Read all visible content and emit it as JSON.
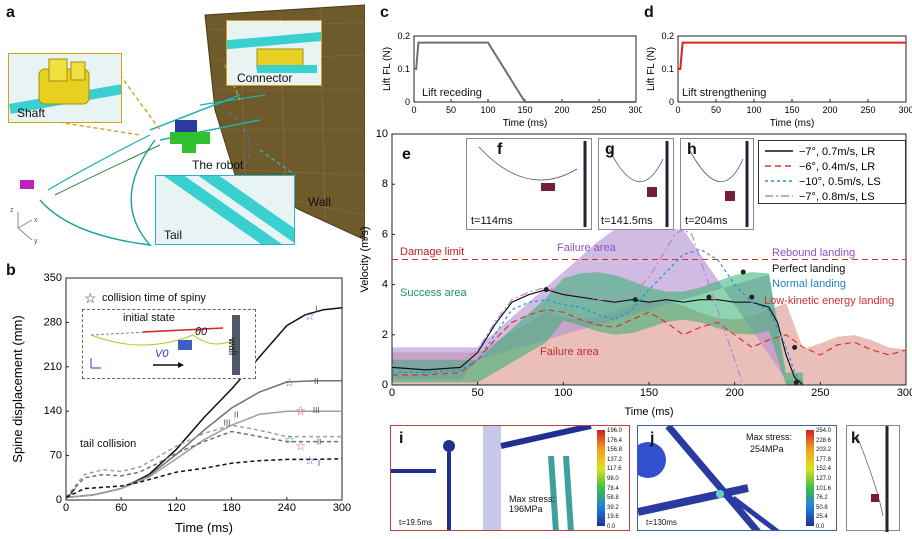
{
  "panels": {
    "a": {
      "label": "a",
      "callouts": {
        "shaft": "Shaft",
        "connector": "Connector",
        "robot": "The robot",
        "wall": "Wall",
        "tail": "Tail"
      }
    },
    "b": {
      "label": "b",
      "legend_star": "collision time of spiny",
      "inset_title": "initial state",
      "inset_theta": "θ0",
      "inset_v": "V0",
      "inset_wall": "wall",
      "tail_collision": "tail collision"
    },
    "c": {
      "label": "c",
      "annotation": "Lift receding"
    },
    "d": {
      "label": "d",
      "annotation": "Lift strengthening"
    },
    "e": {
      "label": "e",
      "damage_limit": "Damage limit",
      "failure_area_top": "Failure area",
      "failure_area_bottom": "Failure area",
      "success_area": "Success area",
      "landing_labels": [
        "Rebound landing",
        "Perfect landing",
        "Normal landing",
        "Low-kinetic energy landing"
      ]
    },
    "f": {
      "label": "f",
      "time": "t=114ms"
    },
    "g": {
      "label": "g",
      "time": "t=141.5ms"
    },
    "h": {
      "label": "h",
      "time": "t=204ms"
    },
    "i": {
      "label": "i",
      "time": "t=19.5ms",
      "stress": "Max stress: 196MPa"
    },
    "j": {
      "label": "j",
      "time": "t=130ms",
      "stress_title": "Max stress:",
      "stress_value": "254MPa"
    },
    "k": {
      "label": "k"
    }
  },
  "colorbars": {
    "i": [
      "196.0",
      "176.4",
      "156.8",
      "137.2",
      "117.6",
      "98.0",
      "78.4",
      "58.8",
      "39.2",
      "19.6",
      "0.0"
    ],
    "j": [
      "254.0",
      "228.6",
      "203.2",
      "177.8",
      "152.4",
      "127.0",
      "101.6",
      "76.2",
      "50.8",
      "25.4",
      "0.0"
    ]
  },
  "chart_data": [
    {
      "id": "c",
      "type": "line",
      "xlabel": "Time (ms)",
      "ylabel": "Lift FL (N)",
      "xlim": [
        0,
        300
      ],
      "ylim": [
        0,
        0.2
      ],
      "xticks": [
        "0",
        "50",
        "100",
        "150",
        "200",
        "250",
        "300"
      ],
      "yticks": [
        "0",
        "0.1",
        "0.2"
      ],
      "series": [
        {
          "name": "lift",
          "color": "#707070",
          "x": [
            0,
            3,
            6,
            100,
            150,
            300
          ],
          "y": [
            0.1,
            0.1,
            0.18,
            0.18,
            0,
            0
          ]
        }
      ]
    },
    {
      "id": "d",
      "type": "line",
      "xlabel": "Time (ms)",
      "ylabel": "Lift FL (N)",
      "xlim": [
        0,
        300
      ],
      "ylim": [
        0,
        0.2
      ],
      "xticks": [
        "0",
        "50",
        "100",
        "150",
        "200",
        "250",
        "300"
      ],
      "yticks": [
        "0",
        "0.1",
        "0.2"
      ],
      "series": [
        {
          "name": "lift",
          "color": "#e02020",
          "x": [
            0,
            3,
            6,
            300
          ],
          "y": [
            0.1,
            0.1,
            0.18,
            0.18
          ]
        }
      ]
    },
    {
      "id": "b",
      "type": "line",
      "xlabel": "Time (ms)",
      "ylabel": "Spine displacement (mm)",
      "xlim": [
        0,
        300
      ],
      "ylim": [
        0,
        350
      ],
      "xticks": [
        "0",
        "60",
        "120",
        "180",
        "240",
        "300"
      ],
      "yticks": [
        "0",
        "70",
        "140",
        "210",
        "280",
        "350"
      ],
      "series": [
        {
          "name": "I",
          "color": "#111111",
          "dash": "",
          "x": [
            0,
            30,
            60,
            90,
            120,
            150,
            180,
            210,
            240,
            260,
            280,
            300
          ],
          "y": [
            4,
            8,
            18,
            40,
            80,
            130,
            175,
            225,
            275,
            292,
            300,
            303
          ]
        },
        {
          "name": "II",
          "color": "#707070",
          "dash": "",
          "x": [
            0,
            30,
            60,
            90,
            120,
            150,
            180,
            210,
            240,
            270,
            300
          ],
          "y": [
            4,
            8,
            18,
            38,
            72,
            110,
            145,
            170,
            186,
            188,
            188
          ]
        },
        {
          "name": "III",
          "color": "#a0a0a0",
          "dash": "",
          "x": [
            0,
            30,
            60,
            90,
            120,
            150,
            180,
            210,
            240,
            270,
            300
          ],
          "y": [
            4,
            8,
            18,
            36,
            65,
            95,
            118,
            135,
            140,
            140,
            140
          ]
        },
        {
          "name": "III-d",
          "color": "#a0a0a0",
          "dash": "4,3",
          "x": [
            0,
            20,
            40,
            60,
            80,
            100,
            120,
            150,
            180,
            210,
            240,
            270,
            300
          ],
          "y": [
            4,
            40,
            48,
            45,
            52,
            68,
            85,
            105,
            118,
            110,
            100,
            100,
            100
          ]
        },
        {
          "name": "II-d",
          "color": "#707070",
          "dash": "4,3",
          "x": [
            0,
            20,
            40,
            60,
            80,
            100,
            120,
            150,
            180,
            210,
            240,
            270,
            300
          ],
          "y": [
            4,
            35,
            40,
            38,
            44,
            58,
            74,
            92,
            108,
            100,
            92,
            92,
            92
          ]
        },
        {
          "name": "I-d",
          "color": "#111111",
          "dash": "4,3",
          "x": [
            0,
            20,
            40,
            60,
            80,
            100,
            120,
            150,
            180,
            210,
            240,
            270,
            300
          ],
          "y": [
            4,
            18,
            20,
            22,
            28,
            36,
            44,
            50,
            58,
            62,
            64,
            64,
            65
          ]
        }
      ],
      "stars": [
        {
          "x": 265,
          "y": 290,
          "color": "#4060d0"
        },
        {
          "x": 243,
          "y": 185,
          "color": "#20a060"
        },
        {
          "x": 255,
          "y": 140,
          "color": "#e03030"
        },
        {
          "x": 243,
          "y": 95,
          "color": "#20a060"
        },
        {
          "x": 255,
          "y": 85,
          "color": "#e06060"
        },
        {
          "x": 265,
          "y": 62,
          "color": "#4060d0"
        }
      ],
      "roman": [
        {
          "text": "I",
          "x": 272,
          "y": 302
        },
        {
          "text": "II",
          "x": 272,
          "y": 188
        },
        {
          "text": "III",
          "x": 272,
          "y": 142
        },
        {
          "text": "II",
          "x": 185,
          "y": 135
        },
        {
          "text": "III",
          "x": 175,
          "y": 122
        },
        {
          "text": "II",
          "x": 275,
          "y": 92
        },
        {
          "text": "I",
          "x": 275,
          "y": 58
        }
      ]
    },
    {
      "id": "e",
      "type": "line",
      "xlabel": "Time (ms)",
      "ylabel": "Velocity (m/s)",
      "xlim": [
        0,
        300
      ],
      "ylim": [
        0,
        10
      ],
      "xticks": [
        "0",
        "50",
        "100",
        "150",
        "200",
        "250",
        "300"
      ],
      "yticks": [
        "0",
        "2",
        "4",
        "6",
        "8",
        "10"
      ],
      "damage_limit": 5,
      "series": [
        {
          "name": "−7°, 0.7m/s, LR",
          "color": "#111111",
          "dash": "",
          "x": [
            0,
            20,
            40,
            50,
            60,
            70,
            80,
            90,
            100,
            110,
            120,
            130,
            140,
            150,
            160,
            170,
            180,
            190,
            200,
            210,
            220,
            225,
            230,
            235,
            240
          ],
          "y": [
            0.7,
            0.6,
            0.7,
            1.3,
            2.4,
            3.3,
            3.6,
            3.8,
            3.6,
            3.5,
            3.4,
            3.3,
            3.4,
            3.3,
            3.4,
            3.3,
            3.4,
            3.4,
            3.3,
            3.3,
            3.1,
            2.5,
            1.2,
            0.3,
            0
          ]
        },
        {
          "name": "−6°, 0.4m/s, LR",
          "color": "#e03030",
          "dash": "6,4",
          "x": [
            0,
            20,
            40,
            50,
            60,
            70,
            80,
            90,
            100,
            110,
            120,
            130,
            140,
            150,
            160,
            170,
            180,
            190,
            200,
            210,
            220,
            230,
            240,
            250,
            260,
            270,
            280,
            290,
            300
          ],
          "y": [
            0.4,
            0.4,
            0.5,
            1.0,
            1.8,
            2.5,
            2.8,
            3.0,
            2.9,
            2.6,
            2.4,
            2.3,
            2.6,
            2.9,
            2.5,
            2.0,
            2.3,
            2.5,
            2.0,
            1.5,
            1.8,
            2.0,
            1.5,
            1.2,
            1.6,
            1.7,
            1.4,
            1.2,
            1.4
          ]
        },
        {
          "name": "−10°, 0.5m/s, LS",
          "color": "#2090e0",
          "dash": "3,3",
          "x": [
            0,
            20,
            40,
            50,
            60,
            70,
            80,
            90,
            100,
            110,
            120,
            130,
            140,
            150,
            160,
            170,
            180,
            190,
            200,
            210,
            220,
            230,
            235,
            240
          ],
          "y": [
            0.5,
            0.5,
            0.6,
            1.0,
            2.0,
            3.0,
            3.3,
            3.4,
            3.2,
            3.1,
            2.8,
            2.6,
            3.0,
            3.8,
            4.5,
            5.2,
            5.4,
            5.0,
            4.0,
            3.3,
            3.0,
            1.5,
            0.5,
            0
          ]
        },
        {
          "name": "−7°, 0.8m/s, LS",
          "color": "#c080d0",
          "dash": "8,3,2,3",
          "x": [
            0,
            20,
            40,
            50,
            60,
            70,
            80,
            90,
            100,
            110,
            120,
            130,
            140,
            150,
            160,
            165,
            170,
            175,
            180,
            185,
            190,
            195,
            200,
            205
          ],
          "y": [
            0.8,
            0.8,
            0.9,
            1.4,
            2.5,
            3.4,
            3.7,
            3.9,
            3.7,
            3.6,
            3.4,
            3.4,
            3.6,
            4.3,
            5.4,
            6.0,
            6.2,
            6.0,
            5.0,
            4.0,
            3.0,
            2.0,
            1.0,
            0
          ]
        }
      ],
      "markers": [
        {
          "x": 90,
          "y": 3.8
        },
        {
          "x": 142,
          "y": 3.4
        },
        {
          "x": 185,
          "y": 3.5
        },
        {
          "x": 210,
          "y": 3.5
        },
        {
          "x": 205,
          "y": 4.5
        },
        {
          "x": 235,
          "y": 1.5
        },
        {
          "x": 236,
          "y": 0.1
        }
      ]
    }
  ]
}
